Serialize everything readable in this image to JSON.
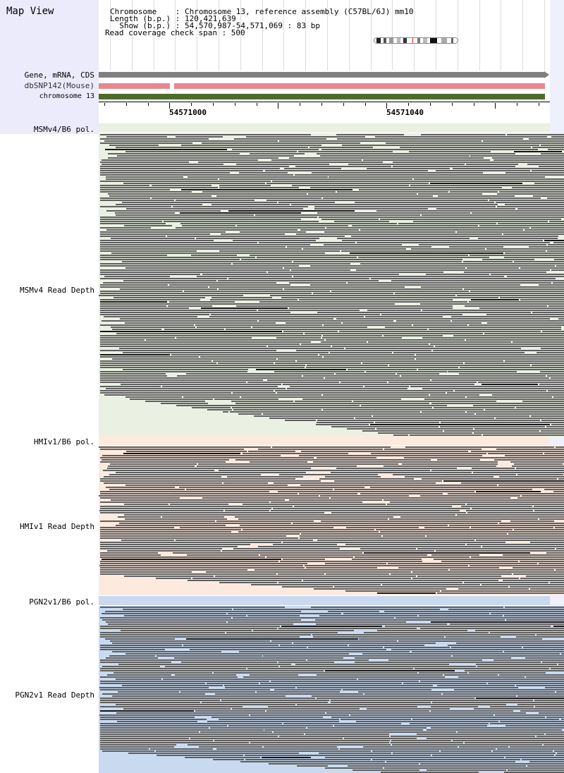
{
  "map_view_title": "Map View",
  "info": {
    "chromosome_line": "Chromosome    : Chromosome 13, reference assembly (C57BL/6J) mm10",
    "length_line": "Length (b.p.) : 120,421,639",
    "show_line": "  Show (b.p.) : 54,570,987-54,571,069 : 83 bp",
    "coverage_line": "Read coverage check span : 500"
  },
  "tracks": {
    "gene": "Gene, mRNA, CDS",
    "dbsnp": "dbSNP142(Mouse)",
    "chromosome": "chromosome 13"
  },
  "ruler": {
    "pos1": "54571000",
    "pos2": "54571040"
  },
  "panels": {
    "msm_pol": "MSMv4/B6 pol.",
    "msm_depth": "MSMv4 Read Depth",
    "hmi_pol": "HMIv1/B6 pol.",
    "hmi_depth": "HMIv1 Read Depth",
    "pgn_pol": "PGN2v1/B6 pol.",
    "pgn_depth": "PGN2v1 Read Depth"
  },
  "colors": {
    "msm_bg": "#eaf0e2",
    "hmi_bg": "#fdeadf",
    "pgn_bg": "#c9daf0",
    "gene_track": "#808080",
    "dbsnp_track": "#e8888e",
    "chrom_track": "#4e6b2a",
    "read": "#5e5e5e"
  }
}
